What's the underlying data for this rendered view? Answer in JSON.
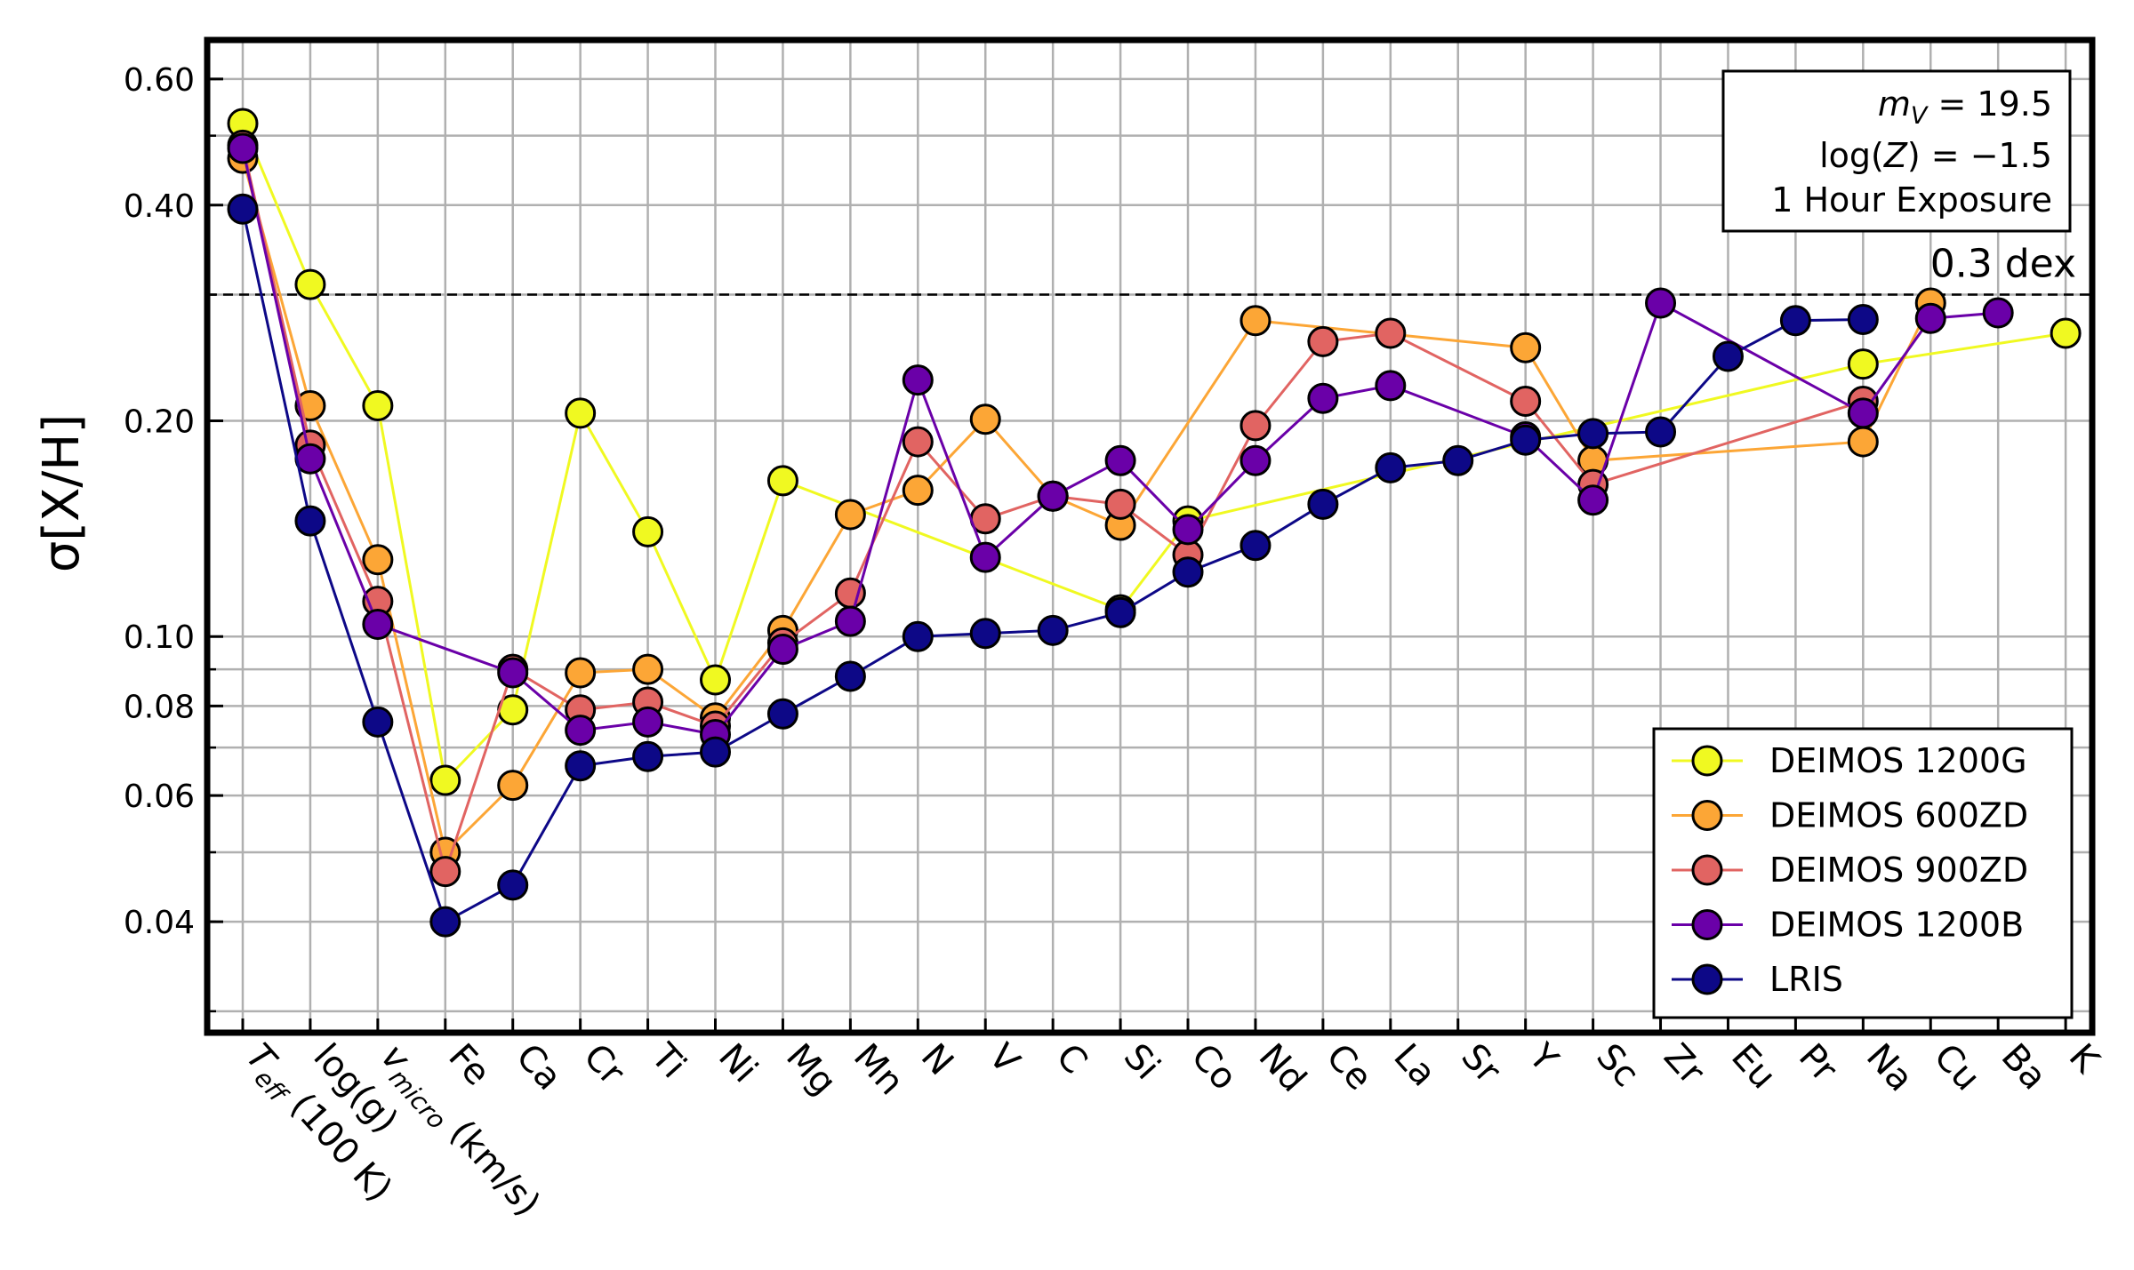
{
  "chart_data": {
    "type": "line",
    "y_scale": "log",
    "ylabel": "σ[X/H]",
    "ylim": [
      0.028,
      0.68
    ],
    "y_ticks": [
      {
        "value": 0.04,
        "label": "0.04"
      },
      {
        "value": 0.06,
        "label": "0.06"
      },
      {
        "value": 0.08,
        "label": "0.08"
      },
      {
        "value": 0.1,
        "label": "0.10"
      },
      {
        "value": 0.2,
        "label": "0.20"
      },
      {
        "value": 0.4,
        "label": "0.40"
      },
      {
        "value": 0.6,
        "label": "0.60"
      }
    ],
    "y_gridlines": [
      0.03,
      0.04,
      0.05,
      0.06,
      0.07,
      0.08,
      0.09,
      0.1,
      0.2,
      0.3,
      0.4,
      0.5,
      0.6
    ],
    "grid": true,
    "categories": [
      "Teff (100 K)",
      "log(g)",
      "vmicro (km/s)",
      "Fe",
      "Ca",
      "Cr",
      "Ti",
      "Ni",
      "Mg",
      "Mn",
      "N",
      "V",
      "C",
      "Si",
      "Co",
      "Nd",
      "Ce",
      "La",
      "Sr",
      "Y",
      "Sc",
      "Zr",
      "Eu",
      "Pr",
      "Na",
      "Cu",
      "Ba",
      "K"
    ],
    "category_display": [
      {
        "main": "T",
        "sub": "eff",
        "rest": " (100 K)"
      },
      {
        "main": "log(g)",
        "sub": "",
        "rest": ""
      },
      {
        "main": "v",
        "sub": "micro",
        "rest": " (km/s)"
      },
      {
        "main": "Fe"
      },
      {
        "main": "Ca"
      },
      {
        "main": "Cr"
      },
      {
        "main": "Ti"
      },
      {
        "main": "Ni"
      },
      {
        "main": "Mg"
      },
      {
        "main": "Mn"
      },
      {
        "main": "N"
      },
      {
        "main": "V"
      },
      {
        "main": "C"
      },
      {
        "main": "Si"
      },
      {
        "main": "Co"
      },
      {
        "main": "Nd"
      },
      {
        "main": "Ce"
      },
      {
        "main": "La"
      },
      {
        "main": "Sr"
      },
      {
        "main": "Y"
      },
      {
        "main": "Sc"
      },
      {
        "main": "Zr"
      },
      {
        "main": "Eu"
      },
      {
        "main": "Pr"
      },
      {
        "main": "Na"
      },
      {
        "main": "Cu"
      },
      {
        "main": "Ba"
      },
      {
        "main": "K"
      }
    ],
    "threshold": {
      "value": 0.3,
      "label": "0.3 dex"
    },
    "annotation": {
      "line1_var": "m",
      "line1_sub": "V",
      "line1_rest": " = 19.5",
      "line2_pre": "log(",
      "line2_var": "Z",
      "line2_rest": ") = −1.5",
      "line3": "1 Hour Exposure"
    },
    "legend_position": "lower-right",
    "series": [
      {
        "name": "DEIMOS 1200G",
        "color": "#f0f921",
        "values": [
          0.52,
          0.31,
          0.21,
          0.063,
          0.079,
          0.205,
          0.14,
          0.087,
          0.165,
          null,
          null,
          null,
          null,
          0.109,
          0.145,
          null,
          null,
          null,
          null,
          null,
          null,
          null,
          null,
          null,
          0.24,
          null,
          null,
          0.265
        ]
      },
      {
        "name": "DEIMOS 600ZD",
        "color": "#fca636",
        "values": [
          0.465,
          0.21,
          0.128,
          0.05,
          0.062,
          0.089,
          0.09,
          0.077,
          0.102,
          0.148,
          0.16,
          0.201,
          0.157,
          0.143,
          null,
          0.276,
          null,
          null,
          null,
          0.253,
          0.176,
          null,
          null,
          null,
          0.187,
          0.292,
          null,
          null
        ]
      },
      {
        "name": "DEIMOS 900ZD",
        "color": "#e16462",
        "values": [
          0.485,
          0.185,
          0.112,
          0.047,
          0.09,
          0.079,
          0.081,
          0.075,
          0.098,
          0.115,
          0.187,
          0.146,
          0.157,
          0.153,
          0.13,
          0.197,
          0.258,
          0.265,
          null,
          0.213,
          0.163,
          null,
          null,
          null,
          0.213,
          null,
          null,
          null
        ]
      },
      {
        "name": "DEIMOS 1200B",
        "color": "#6a00a8",
        "values": [
          0.48,
          0.177,
          0.104,
          null,
          0.089,
          0.074,
          0.076,
          0.073,
          0.096,
          0.105,
          0.228,
          0.129,
          0.157,
          0.176,
          0.141,
          0.176,
          0.215,
          0.224,
          null,
          0.19,
          0.155,
          0.292,
          null,
          null,
          0.205,
          0.278,
          0.283,
          null
        ]
      },
      {
        "name": "LRIS",
        "color": "#0d0887",
        "values": [
          0.395,
          0.145,
          0.076,
          0.04,
          0.045,
          0.066,
          0.068,
          0.069,
          0.078,
          0.088,
          0.1,
          0.101,
          0.102,
          0.108,
          0.123,
          0.134,
          0.153,
          0.172,
          0.176,
          0.188,
          0.192,
          0.193,
          0.246,
          0.276,
          0.277,
          null,
          null,
          null
        ]
      }
    ]
  }
}
